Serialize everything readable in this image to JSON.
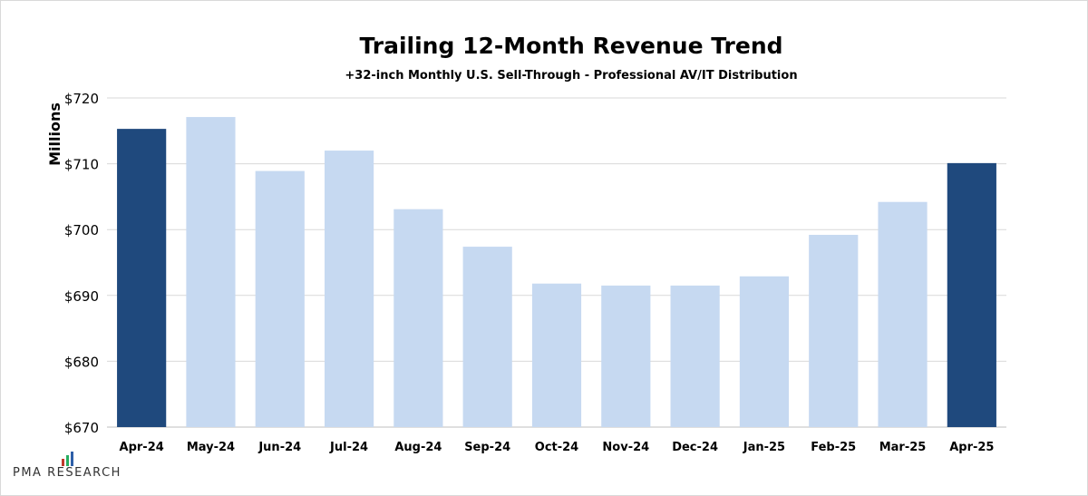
{
  "chart_data": {
    "type": "bar",
    "title": "Trailing 12-Month Revenue Trend",
    "subtitle": "+32-inch Monthly U.S. Sell-Through - Professional AV/IT Distribution",
    "ylabel": "Millions",
    "xlabel": "",
    "ylim": [
      670,
      720
    ],
    "yticks": [
      670,
      680,
      690,
      700,
      710,
      720
    ],
    "ytick_prefix": "$",
    "grid": true,
    "legend": "none",
    "categories": [
      "Apr-24",
      "May-24",
      "Jun-24",
      "Jul-24",
      "Aug-24",
      "Sep-24",
      "Oct-24",
      "Nov-24",
      "Dec-24",
      "Jan-25",
      "Feb-25",
      "Mar-25",
      "Apr-25"
    ],
    "values": [
      715.3,
      717.1,
      708.9,
      712.0,
      703.1,
      697.4,
      691.8,
      691.5,
      691.5,
      692.9,
      699.2,
      704.2,
      710.1
    ],
    "highlight": [
      0,
      12
    ],
    "colors": {
      "highlight": "#1f497d",
      "normal": "#c6d9f1",
      "grid": "#d9d9d9",
      "axis": "#bfbfbf",
      "text": "#000000"
    }
  },
  "branding": {
    "logo_text": "PMA RESEARCH",
    "logo_icon": "bar-chart-logo-icon",
    "logo_colors": [
      "#c0392b",
      "#27ae60",
      "#2e5fa8"
    ]
  }
}
